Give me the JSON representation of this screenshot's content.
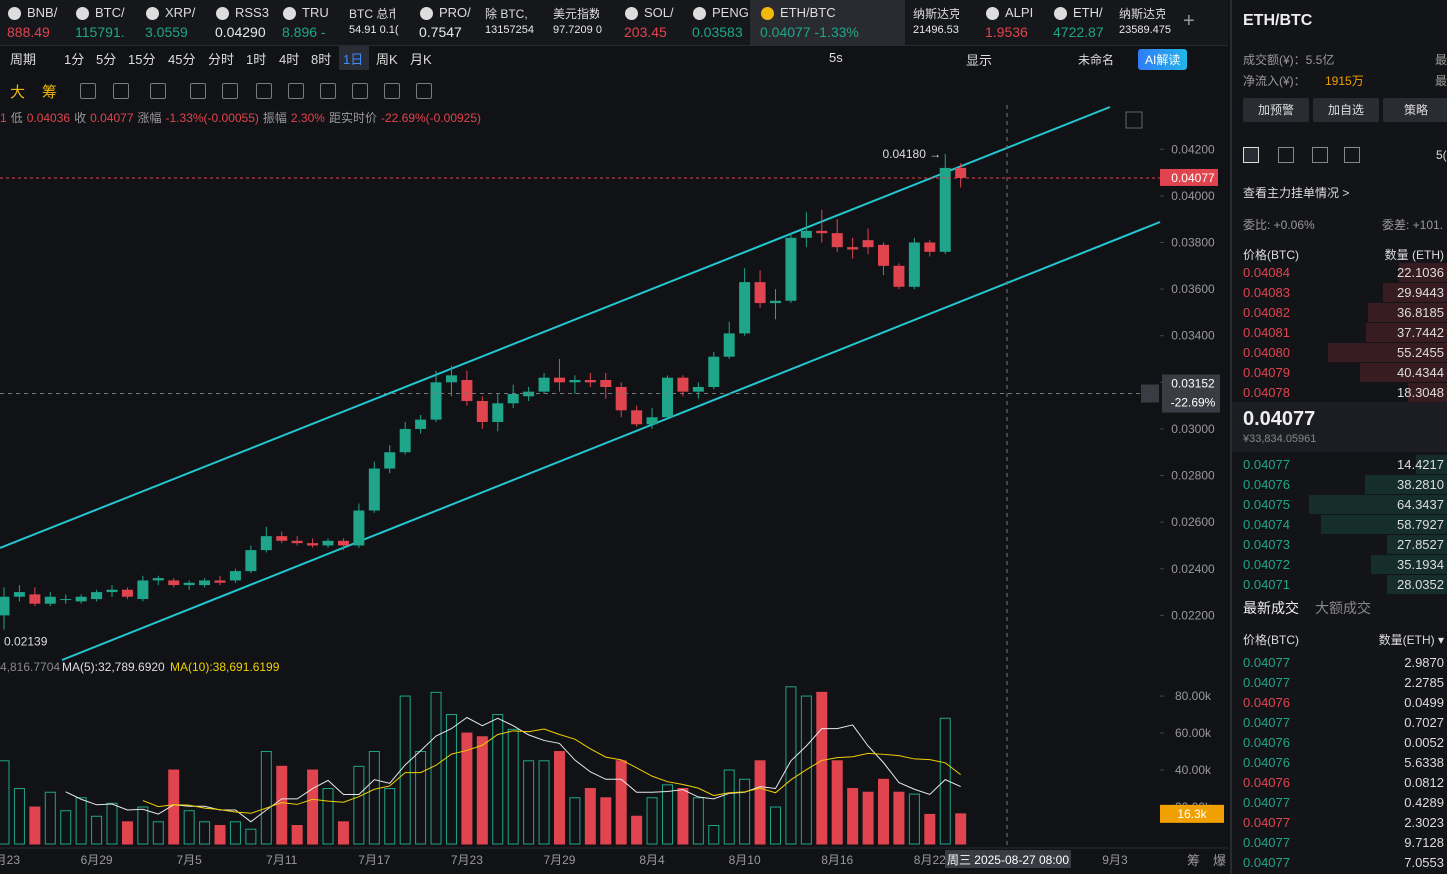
{
  "tabs": [
    {
      "name": "BNB/",
      "price": "888.49",
      "color": "#e0444e"
    },
    {
      "name": "BTC/",
      "price": "115791.",
      "color": "#1fa58a"
    },
    {
      "name": "XRP/",
      "price": "3.0559",
      "color": "#1fa58a"
    },
    {
      "name": "RSS3",
      "price": "0.04290",
      "color": "#e8e8e8"
    },
    {
      "name": "TRU",
      "price": "8.896 -",
      "color": "#1fa58a"
    },
    {
      "name": "BTC 总市",
      "price": "54.91 0.1(",
      "color": "#e8e8e8"
    },
    {
      "name": "PRO/",
      "price": "0.7547",
      "color": "#e8e8e8"
    },
    {
      "name": "除 BTC, E",
      "price": "13157254",
      "color": "#e8e8e8"
    },
    {
      "name": "美元指数",
      "price": "97.7209 0",
      "color": "#e8e8e8"
    },
    {
      "name": "SOL/",
      "price": "203.45",
      "color": "#e0444e"
    },
    {
      "name": "PENG",
      "price": "0.03583",
      "color": "#1fa58a"
    },
    {
      "name": "ETH/BTC",
      "price": "0.04077 -1.33%",
      "color": "#1fa58a"
    },
    {
      "name": "纳斯达克",
      "price": "21496.53",
      "color": "#e8e8e8"
    },
    {
      "name": "ALPI",
      "price": "1.9536",
      "color": "#e0444e"
    },
    {
      "name": "ETH/",
      "price": "4722.87",
      "color": "#1fa58a"
    },
    {
      "name": "纳斯达克",
      "price": "23589.475",
      "color": "#e8e8e8"
    }
  ],
  "toolbar": {
    "periods": [
      "周期",
      "1分",
      "5分",
      "15分",
      "45分",
      "分时",
      "1时",
      "4时",
      "8时",
      "1日",
      "周K",
      "月K"
    ],
    "active": "1日",
    "interval": "5s",
    "display": "显示",
    "layout": "未命名",
    "ai": "AI解读",
    "tools": [
      "大",
      "筹"
    ]
  },
  "info": {
    "prefix": "1",
    "low_label": "低",
    "low": "0.04036",
    "close_label": "收",
    "close": "0.04077",
    "change_label": "涨幅",
    "change": "-1.33%(-0.00055)",
    "amp_label": "振幅",
    "amp": "2.30%",
    "dist_label": "距实时价",
    "dist": "-22.69%(-0.00925)"
  },
  "chart_data": {
    "type": "candlestick",
    "up_color": "#1fa58a",
    "down_color": "#e0444e",
    "ylim": [
      0.0203,
      0.0439
    ],
    "yticks": [
      {
        "value": 0.042,
        "label": "0.04200"
      },
      {
        "value": 0.04,
        "label": "0.04000"
      },
      {
        "value": 0.038,
        "label": "0.03800"
      },
      {
        "value": 0.036,
        "label": "0.03600"
      },
      {
        "value": 0.034,
        "label": "0.03400"
      },
      {
        "value": 0.032,
        "label": "0.03200"
      },
      {
        "value": 0.03,
        "label": "0.03000"
      },
      {
        "value": 0.028,
        "label": "0.02800"
      },
      {
        "value": 0.026,
        "label": "0.02600"
      },
      {
        "value": 0.024,
        "label": "0.02400"
      },
      {
        "value": 0.022,
        "label": "0.02200"
      }
    ],
    "candles": [
      [
        0.022,
        0.0232,
        0.02139,
        0.0228
      ],
      [
        0.0228,
        0.0233,
        0.0226,
        0.023
      ],
      [
        0.0229,
        0.0232,
        0.0224,
        0.0225
      ],
      [
        0.0225,
        0.023,
        0.0224,
        0.0228
      ],
      [
        0.0227,
        0.0229,
        0.0225,
        0.0227
      ],
      [
        0.0226,
        0.0229,
        0.0225,
        0.0228
      ],
      [
        0.0227,
        0.0231,
        0.0226,
        0.023
      ],
      [
        0.023,
        0.0233,
        0.0228,
        0.0231
      ],
      [
        0.0231,
        0.0232,
        0.0227,
        0.0228
      ],
      [
        0.0227,
        0.0237,
        0.0226,
        0.0235
      ],
      [
        0.0235,
        0.0237,
        0.0233,
        0.0236
      ],
      [
        0.0235,
        0.0236,
        0.0232,
        0.0233
      ],
      [
        0.0233,
        0.0235,
        0.0231,
        0.0234
      ],
      [
        0.0233,
        0.0236,
        0.0232,
        0.0235
      ],
      [
        0.0235,
        0.0237,
        0.0233,
        0.0234
      ],
      [
        0.0235,
        0.024,
        0.0234,
        0.0239
      ],
      [
        0.0239,
        0.025,
        0.0238,
        0.0248
      ],
      [
        0.0248,
        0.0258,
        0.0247,
        0.0254
      ],
      [
        0.0254,
        0.0256,
        0.0251,
        0.0252
      ],
      [
        0.0252,
        0.0254,
        0.025,
        0.0251
      ],
      [
        0.0251,
        0.0253,
        0.0249,
        0.025
      ],
      [
        0.025,
        0.0253,
        0.0249,
        0.0252
      ],
      [
        0.0252,
        0.0253,
        0.0248,
        0.025
      ],
      [
        0.025,
        0.0268,
        0.0249,
        0.0265
      ],
      [
        0.0265,
        0.0286,
        0.0264,
        0.0283
      ],
      [
        0.0283,
        0.0293,
        0.0281,
        0.029
      ],
      [
        0.029,
        0.0303,
        0.0289,
        0.03
      ],
      [
        0.03,
        0.0306,
        0.0298,
        0.0304
      ],
      [
        0.0304,
        0.0325,
        0.0303,
        0.032
      ],
      [
        0.032,
        0.0327,
        0.0314,
        0.0323
      ],
      [
        0.0321,
        0.0325,
        0.031,
        0.0312
      ],
      [
        0.0312,
        0.0314,
        0.03,
        0.0303
      ],
      [
        0.0303,
        0.0315,
        0.0299,
        0.0311
      ],
      [
        0.0311,
        0.0319,
        0.0309,
        0.0315
      ],
      [
        0.0314,
        0.0318,
        0.0312,
        0.0316
      ],
      [
        0.0316,
        0.0324,
        0.0315,
        0.0322
      ],
      [
        0.0322,
        0.033,
        0.0316,
        0.032
      ],
      [
        0.032,
        0.0323,
        0.0315,
        0.0321
      ],
      [
        0.0321,
        0.0324,
        0.0318,
        0.032
      ],
      [
        0.0321,
        0.0324,
        0.0313,
        0.0318
      ],
      [
        0.0318,
        0.032,
        0.0305,
        0.0308
      ],
      [
        0.0308,
        0.031,
        0.0301,
        0.0302
      ],
      [
        0.0302,
        0.0309,
        0.03,
        0.0305
      ],
      [
        0.0305,
        0.0323,
        0.0304,
        0.0322
      ],
      [
        0.0322,
        0.0323,
        0.0314,
        0.0316
      ],
      [
        0.0316,
        0.032,
        0.0313,
        0.0318
      ],
      [
        0.0318,
        0.0333,
        0.0317,
        0.0331
      ],
      [
        0.0331,
        0.0346,
        0.033,
        0.0341
      ],
      [
        0.0341,
        0.0369,
        0.034,
        0.0363
      ],
      [
        0.0363,
        0.0368,
        0.0352,
        0.0354
      ],
      [
        0.0354,
        0.036,
        0.0347,
        0.0355
      ],
      [
        0.0355,
        0.0384,
        0.0354,
        0.0382
      ],
      [
        0.0382,
        0.0393,
        0.0378,
        0.0385
      ],
      [
        0.0385,
        0.0394,
        0.038,
        0.0384
      ],
      [
        0.0384,
        0.039,
        0.0376,
        0.0378
      ],
      [
        0.0378,
        0.0382,
        0.0373,
        0.0377
      ],
      [
        0.0381,
        0.0386,
        0.0375,
        0.0378
      ],
      [
        0.0379,
        0.038,
        0.0366,
        0.037
      ],
      [
        0.037,
        0.0371,
        0.036,
        0.0361
      ],
      [
        0.0361,
        0.0382,
        0.036,
        0.038
      ],
      [
        0.038,
        0.0381,
        0.0374,
        0.0376
      ],
      [
        0.0376,
        0.0418,
        0.0375,
        0.0412
      ],
      [
        0.0412,
        0.0414,
        0.04036,
        0.04077
      ]
    ],
    "high_note": {
      "value": 0.0418,
      "label": "0.04180 →"
    },
    "low_note": {
      "value": 0.02139,
      "label": "0.02139"
    },
    "last_price": 0.04077,
    "crosshair": {
      "price": 0.03152,
      "pct": "-22.69%",
      "time": "周三 2025-08-27 08:00"
    },
    "xticks": [
      {
        "value": 0,
        "label": "6月23"
      },
      {
        "value": 6,
        "label": "6月29"
      },
      {
        "value": 12,
        "label": "7月5"
      },
      {
        "value": 18,
        "label": "7月11"
      },
      {
        "value": 24,
        "label": "7月17"
      },
      {
        "value": 30,
        "label": "7月23"
      },
      {
        "value": 36,
        "label": "7月29"
      },
      {
        "value": 42,
        "label": "8月4"
      },
      {
        "value": 48,
        "label": "8月10"
      },
      {
        "value": 54,
        "label": "8月16"
      },
      {
        "value": 60,
        "label": "8月22"
      },
      {
        "value": 72,
        "label": "9月3"
      }
    ],
    "volume": {
      "values": [
        45000,
        30000,
        20000,
        28000,
        18000,
        25000,
        15000,
        22000,
        12000,
        20000,
        12000,
        40000,
        18000,
        12000,
        10000,
        12000,
        8000,
        50000,
        42000,
        10000,
        40000,
        30000,
        12000,
        42000,
        50000,
        30000,
        80000,
        50000,
        82000,
        70000,
        60000,
        58000,
        70000,
        62000,
        45000,
        45000,
        50000,
        25000,
        30000,
        25000,
        45000,
        15000,
        25000,
        32000,
        30000,
        25000,
        10000,
        40000,
        35000,
        45000,
        20000,
        85000,
        80000,
        82000,
        45000,
        30000,
        28000,
        35000,
        28000,
        27000,
        16000,
        68000,
        16300
      ],
      "last_label": "16.3k",
      "ylim": [
        0,
        99500
      ],
      "yticks": [
        {
          "value": 20000,
          "label": "20.00k"
        },
        {
          "value": 40000,
          "label": "40.00k"
        },
        {
          "value": 60000,
          "label": "60.00k"
        },
        {
          "value": 80000,
          "label": "80.00k"
        }
      ],
      "legend": [
        "4,816.7704",
        "MA(5):32,789.6920",
        "MA(10):38,691.6199"
      ]
    },
    "footer": [
      "筹",
      "爆"
    ]
  },
  "panel": {
    "title": "ETH/BTC",
    "turnover": "成交额(¥)：5.5亿",
    "inflow_label": "净流入(¥)：",
    "inflow": "1915万",
    "edge": [
      "最",
      "最"
    ],
    "buttons": [
      "加预警",
      "加自选",
      "策略"
    ],
    "depth": "5(",
    "main_orders": "查看主力挂单情况 >",
    "ratio": "委比: +0.06%",
    "diff": "委差: +101.",
    "book_headers": [
      "价格(BTC)",
      "数量 (ETH)"
    ],
    "asks": [
      [
        "0.04084",
        "22.1036"
      ],
      [
        "0.04083",
        "29.9443"
      ],
      [
        "0.04082",
        "36.8185"
      ],
      [
        "0.04081",
        "37.7442"
      ],
      [
        "0.04080",
        "55.2455"
      ],
      [
        "0.04079",
        "40.4344"
      ],
      [
        "0.04078",
        "18.3048"
      ]
    ],
    "ask_sizes": [
      22.1036,
      29.9443,
      36.8185,
      37.7442,
      55.2455,
      40.4344,
      18.3048
    ],
    "mid": "0.04077",
    "mid_cny": "¥33,834.05961",
    "bids": [
      [
        "0.04077",
        "14.4217"
      ],
      [
        "0.04076",
        "38.2810"
      ],
      [
        "0.04075",
        "64.3437"
      ],
      [
        "0.04074",
        "58.7927"
      ],
      [
        "0.04073",
        "27.8527"
      ],
      [
        "0.04072",
        "35.1934"
      ],
      [
        "0.04071",
        "28.0352"
      ]
    ],
    "bid_sizes": [
      14.4217,
      38.281,
      64.3437,
      58.7927,
      27.8527,
      35.1934,
      28.0352
    ],
    "trade_tabs": [
      "最新成交",
      "大额成交"
    ],
    "trade_headers": [
      "价格(BTC)",
      "数量(ETH) ▾"
    ],
    "trades": [
      {
        "price": "0.04077",
        "qty": "2.9870",
        "color": "#1fa58a"
      },
      {
        "price": "0.04077",
        "qty": "2.2785",
        "color": "#1fa58a"
      },
      {
        "price": "0.04076",
        "qty": "0.0499",
        "color": "#e0444e"
      },
      {
        "price": "0.04077",
        "qty": "0.7027",
        "color": "#1fa58a"
      },
      {
        "price": "0.04076",
        "qty": "0.0052",
        "color": "#1fa58a"
      },
      {
        "price": "0.04076",
        "qty": "5.6338",
        "color": "#1fa58a"
      },
      {
        "price": "0.04076",
        "qty": "0.0812",
        "color": "#e0444e"
      },
      {
        "price": "0.04077",
        "qty": "0.4289",
        "color": "#1fa58a"
      },
      {
        "price": "0.04077",
        "qty": "2.3023",
        "color": "#e0444e"
      },
      {
        "price": "0.04077",
        "qty": "9.7128",
        "color": "#1fa58a"
      },
      {
        "price": "0.04077",
        "qty": "7.0553",
        "color": "#1fa58a"
      }
    ]
  }
}
